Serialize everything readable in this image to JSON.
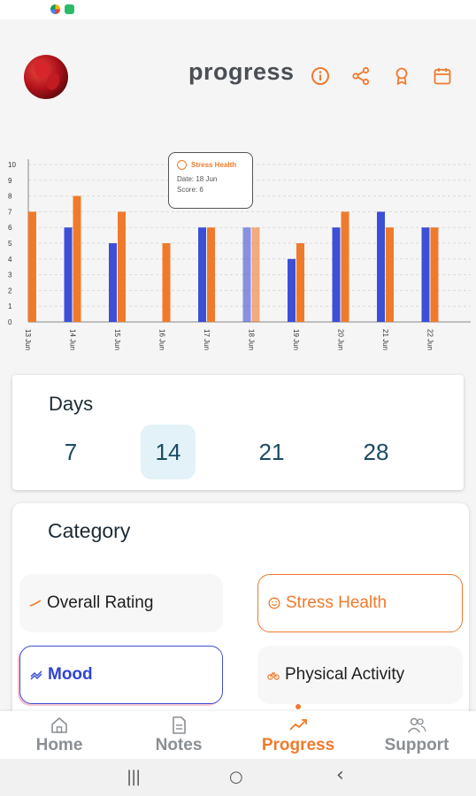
{
  "header": {
    "title": "progress",
    "icons": [
      "info-icon",
      "share-icon",
      "award-icon",
      "calendar-icon"
    ]
  },
  "colors": {
    "accent": "#f07a2c",
    "blue": "#3d4fd6",
    "text": "#1b4a63"
  },
  "chart_data": {
    "type": "bar",
    "categories": [
      "13 Jun",
      "14 Jun",
      "15 Jun",
      "16 Jun",
      "17 Jun",
      "18 Jun",
      "19 Jun",
      "20 Jun",
      "21 Jun",
      "22 Jun"
    ],
    "series": [
      {
        "values": [
          null,
          6,
          5,
          null,
          6,
          6,
          4,
          6,
          7,
          6
        ],
        "color": "#3d4fd6"
      },
      {
        "values": [
          7,
          8,
          7,
          5,
          6,
          6,
          5,
          7,
          6,
          6
        ],
        "color": "#f07a2c"
      }
    ],
    "highlight_index": 5,
    "y_ticks": [
      "0",
      "1",
      "2",
      "3",
      "4",
      "5",
      "6",
      "7",
      "8",
      "9",
      "10"
    ],
    "ylim": [
      0,
      10
    ],
    "grid": true
  },
  "tooltip": {
    "title": "Stress Health",
    "date": "Date: 18 Jun",
    "score": "Score: 6"
  },
  "days": {
    "title": "Days",
    "options": [
      "7",
      "14",
      "21",
      "28"
    ],
    "selected": "14"
  },
  "category": {
    "title": "Category",
    "items": [
      {
        "label": "Overall Rating",
        "icon": "rating-icon"
      },
      {
        "label": "Stress Health",
        "icon": "smile-icon"
      },
      {
        "label": "Mood",
        "icon": "mood-icon"
      },
      {
        "label": "Physical Activity",
        "icon": "bike-icon"
      }
    ]
  },
  "bottom_nav": {
    "items": [
      {
        "label": "Home",
        "icon": "home-icon"
      },
      {
        "label": "Notes",
        "icon": "notes-icon"
      },
      {
        "label": "Progress",
        "icon": "trending-icon"
      },
      {
        "label": "Support",
        "icon": "people-icon"
      }
    ],
    "active": "Progress"
  },
  "system_nav": {
    "recents": "|||",
    "home": "○",
    "back": "‹"
  }
}
